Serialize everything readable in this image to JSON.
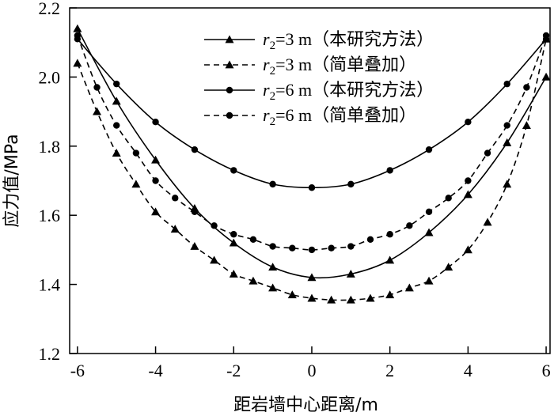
{
  "chart_data": {
    "type": "line",
    "xlabel": "距岩墙中心距离/m",
    "ylabel": "应力值/MPa",
    "xlim": [
      -6.2,
      6.1
    ],
    "ylim": [
      1.2,
      2.2
    ],
    "xticks": [
      -6,
      -4,
      -2,
      0,
      2,
      4,
      6
    ],
    "yticks": [
      1.2,
      1.4,
      1.6,
      1.8,
      2.0,
      2.2
    ],
    "yticks_text": [
      "1.2",
      "1.4",
      "1.6",
      "1.8",
      "2.0",
      "2.2"
    ],
    "legend_position": "top-center",
    "series": [
      {
        "name_prefix": "r",
        "name_sub": "2",
        "name_rest": "=3 m（本研究方法）",
        "marker": "triangle",
        "line": "solid",
        "x": [
          -6,
          -5,
          -4,
          -3,
          -2,
          -1,
          0,
          1,
          2,
          3,
          4,
          5,
          6
        ],
        "values": [
          2.14,
          1.93,
          1.76,
          1.62,
          1.52,
          1.45,
          1.42,
          1.43,
          1.47,
          1.55,
          1.66,
          1.81,
          2.0
        ]
      },
      {
        "name_prefix": "r",
        "name_sub": "2",
        "name_rest": "=3 m（简单叠加）",
        "marker": "triangle",
        "line": "dashed",
        "x": [
          -6,
          -5.5,
          -5,
          -4.5,
          -4,
          -3.5,
          -3,
          -2.5,
          -2,
          -1.5,
          -1,
          -0.5,
          0,
          0.5,
          1,
          1.5,
          2,
          2.5,
          3,
          3.5,
          4,
          4.5,
          5,
          5.5,
          6
        ],
        "values": [
          2.04,
          1.9,
          1.78,
          1.69,
          1.61,
          1.56,
          1.51,
          1.47,
          1.43,
          1.41,
          1.39,
          1.37,
          1.36,
          1.355,
          1.355,
          1.36,
          1.37,
          1.39,
          1.41,
          1.45,
          1.5,
          1.58,
          1.69,
          1.86,
          2.11
        ]
      },
      {
        "name_prefix": "r",
        "name_sub": "2",
        "name_rest": "=6 m（本研究方法）",
        "marker": "circle",
        "line": "solid",
        "x": [
          -6,
          -5,
          -4,
          -3,
          -2,
          -1,
          0,
          1,
          2,
          3,
          4,
          5,
          6
        ],
        "values": [
          2.11,
          1.98,
          1.87,
          1.79,
          1.73,
          1.69,
          1.68,
          1.69,
          1.73,
          1.79,
          1.87,
          1.98,
          2.11
        ]
      },
      {
        "name_prefix": "r",
        "name_sub": "2",
        "name_rest": "=6 m（简单叠加）",
        "marker": "circle",
        "line": "dashed",
        "x": [
          -6,
          -5.5,
          -5,
          -4.5,
          -4,
          -3.5,
          -3,
          -2.5,
          -2,
          -1.5,
          -1,
          -0.5,
          0,
          0.5,
          1,
          1.5,
          2,
          2.5,
          3,
          3.5,
          4,
          4.5,
          5,
          5.5,
          6
        ],
        "values": [
          2.12,
          1.97,
          1.86,
          1.78,
          1.7,
          1.65,
          1.61,
          1.57,
          1.545,
          1.53,
          1.51,
          1.505,
          1.5,
          1.505,
          1.51,
          1.53,
          1.545,
          1.57,
          1.61,
          1.65,
          1.7,
          1.78,
          1.86,
          1.97,
          2.12
        ]
      }
    ]
  }
}
